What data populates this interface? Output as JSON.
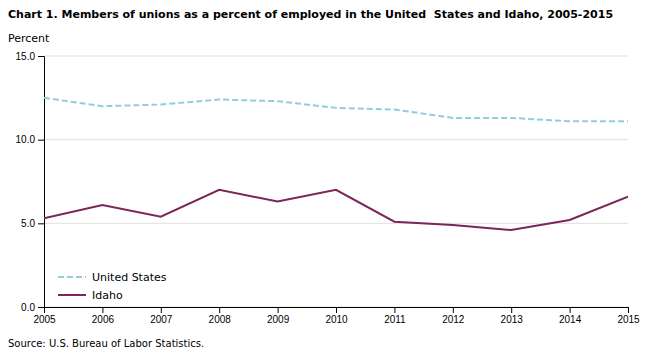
{
  "chart_data": {
    "type": "line",
    "title": "Chart 1. Members of unions as a percent of employed in the United  States and Idaho, 2005-2015",
    "ylabel": "Percent",
    "source": "Source: U.S. Bureau of Labor Statistics.",
    "x": [
      2005,
      2006,
      2007,
      2008,
      2009,
      2010,
      2011,
      2012,
      2013,
      2014,
      2015
    ],
    "series": [
      {
        "name": "United States",
        "color": "#92CDDC",
        "line_style": "dashed",
        "values": [
          12.5,
          12.0,
          12.1,
          12.4,
          12.3,
          11.9,
          11.8,
          11.3,
          11.3,
          11.1,
          11.1
        ]
      },
      {
        "name": "Idaho",
        "color": "#7B2558",
        "line_style": "solid",
        "values": [
          5.3,
          6.1,
          5.4,
          7.0,
          6.3,
          7.0,
          5.1,
          4.9,
          4.6,
          5.2,
          6.6
        ]
      }
    ],
    "xlim": [
      2005,
      2015
    ],
    "xticks": [
      2005,
      2006,
      2007,
      2008,
      2009,
      2010,
      2011,
      2012,
      2013,
      2014,
      2015
    ],
    "ylim": [
      0.0,
      15.0
    ],
    "yticks": [
      {
        "value": 0.0,
        "label": "0.0"
      },
      {
        "value": 5.0,
        "label": "5.0"
      },
      {
        "value": 10.0,
        "label": "10.0"
      },
      {
        "value": 15.0,
        "label": "15.0"
      }
    ],
    "grid": true,
    "legend": "lower left"
  }
}
